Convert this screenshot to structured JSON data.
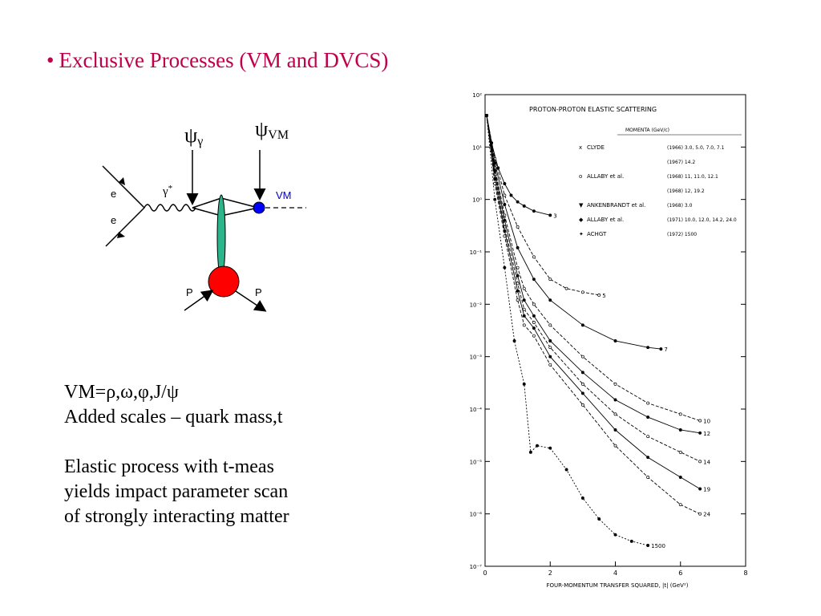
{
  "title": {
    "bullet": "•",
    "text": "Exclusive Processes (VM and DVCS)"
  },
  "diagram": {
    "psi_gamma_symbol": "ψ",
    "psi_gamma_sub": "γ",
    "psi_vm_symbol": "ψ",
    "psi_vm_sub": "VM",
    "e_in": "e",
    "e_out": "e",
    "photon": "γ",
    "photon_star": "*",
    "vm_label": "VM",
    "p_in": "P",
    "p_out": "P",
    "colors": {
      "blob": "#ff0000",
      "vm_dot": "#0000ff",
      "ellipse": "#2bb58a",
      "lines": "#000000"
    }
  },
  "text": {
    "line1": "VM=ρ,ω,φ,J/ψ",
    "line2": "Added scales – quark mass,t",
    "line3": "Elastic process with t-meas",
    "line4": "yields impact parameter scan",
    "line5": "of strongly interacting matter"
  },
  "chart_data": {
    "type": "scatter",
    "title": "PROTON-PROTON ELASTIC SCATTERING",
    "xlabel": "FOUR-MOMENTUM TRANSFER SQUARED, |t| (GeV²)",
    "ylabel": "",
    "x_ticks": [
      "0",
      "2",
      "4",
      "6",
      "8"
    ],
    "y_ticks": [
      "10²",
      "10¹",
      "10⁰",
      "10⁻¹",
      "10⁻²",
      "10⁻³",
      "10⁻⁴",
      "10⁻⁵",
      "10⁻⁶",
      "10⁻⁷"
    ],
    "xlim": [
      0,
      8
    ],
    "ylim_log10": [
      -7,
      2
    ],
    "legend_header": "MOMENTA (GeV/c)",
    "legend": [
      {
        "marker": "x",
        "name": "CLYDE",
        "value": "(1966) 3.0, 5.0, 7.0, 7.1"
      },
      {
        "marker": "",
        "name": "",
        "value": "(1967) 14.2"
      },
      {
        "marker": "o",
        "name": "ALLABY et al.",
        "value": "(1968) 11, 11.0, 12.1"
      },
      {
        "marker": "",
        "name": "",
        "value": "(1968) 12, 19.2"
      },
      {
        "marker": "▼",
        "name": "ANKENBRANDT et al.",
        "value": "(1968) 3.0"
      },
      {
        "marker": "◆",
        "name": "ALLABY et al.",
        "value": "(1971) 10.0, 12.0, 14.2, 24.0"
      },
      {
        "marker": "✦",
        "name": "ACHGT",
        "value": "(1972) 1500"
      }
    ],
    "annotations": [
      "3",
      "5",
      "7",
      "10",
      "12",
      "14",
      "19",
      "24",
      "1500"
    ],
    "series": [
      {
        "name": "3",
        "x": [
          0.05,
          0.2,
          0.4,
          0.6,
          0.8,
          1.0,
          1.2,
          1.5,
          2.0
        ],
        "y": [
          40,
          12,
          4,
          2,
          1.2,
          0.9,
          0.75,
          0.6,
          0.5
        ]
      },
      {
        "name": "5",
        "x": [
          0.05,
          0.3,
          0.6,
          1.0,
          1.5,
          2.0,
          2.5,
          3.0,
          3.5
        ],
        "y": [
          40,
          6,
          1.2,
          0.3,
          0.08,
          0.03,
          0.02,
          0.017,
          0.015
        ]
      },
      {
        "name": "7",
        "x": [
          0.05,
          0.3,
          0.6,
          1.0,
          1.5,
          2.0,
          3.0,
          4.0,
          5.0,
          5.4
        ],
        "y": [
          40,
          5,
          0.8,
          0.12,
          0.03,
          0.012,
          0.004,
          0.002,
          0.0015,
          0.0014
        ]
      },
      {
        "name": "10",
        "x": [
          0.05,
          0.3,
          0.6,
          1.0,
          1.2,
          1.5,
          2.0,
          3.0,
          4.0,
          5.0,
          6.0,
          6.6
        ],
        "y": [
          40,
          4,
          0.5,
          0.05,
          0.02,
          0.01,
          0.004,
          0.001,
          0.0003,
          0.00013,
          8e-05,
          6e-05
        ]
      },
      {
        "name": "12",
        "x": [
          0.05,
          0.3,
          0.6,
          1.0,
          1.2,
          1.5,
          2.0,
          3.0,
          4.0,
          5.0,
          6.0,
          6.6
        ],
        "y": [
          40,
          3.5,
          0.4,
          0.035,
          0.012,
          0.006,
          0.002,
          0.0005,
          0.00015,
          7e-05,
          4e-05,
          3.5e-05
        ]
      },
      {
        "name": "14",
        "x": [
          0.05,
          0.3,
          0.6,
          1.0,
          1.2,
          1.5,
          2.0,
          3.0,
          4.0,
          5.0,
          6.0,
          6.6
        ],
        "y": [
          40,
          3,
          0.3,
          0.025,
          0.008,
          0.0045,
          0.0015,
          0.0003,
          8e-05,
          3e-05,
          1.5e-05,
          1e-05
        ]
      },
      {
        "name": "19",
        "x": [
          0.05,
          0.3,
          0.6,
          1.0,
          1.2,
          1.5,
          2.0,
          3.0,
          4.0,
          5.0,
          6.0,
          6.6
        ],
        "y": [
          40,
          2.5,
          0.25,
          0.018,
          0.006,
          0.0035,
          0.001,
          0.0002,
          4e-05,
          1.2e-05,
          5e-06,
          3e-06
        ]
      },
      {
        "name": "24",
        "x": [
          0.05,
          0.3,
          0.6,
          1.0,
          1.2,
          1.5,
          2.0,
          3.0,
          4.0,
          5.0,
          6.0,
          6.6
        ],
        "y": [
          40,
          2,
          0.2,
          0.012,
          0.004,
          0.0025,
          0.0007,
          0.00012,
          2e-05,
          5e-06,
          1.5e-06,
          1e-06
        ]
      },
      {
        "name": "1500",
        "x": [
          0.05,
          0.3,
          0.6,
          0.9,
          1.2,
          1.4,
          1.6,
          2.0,
          2.5,
          3.0,
          3.5,
          4.0,
          4.5,
          5.0
        ],
        "y": [
          40,
          1,
          0.05,
          0.002,
          0.0003,
          1.5e-05,
          2e-05,
          1.8e-05,
          7e-06,
          2e-06,
          8e-07,
          4e-07,
          3e-07,
          2.5e-07
        ]
      }
    ]
  }
}
